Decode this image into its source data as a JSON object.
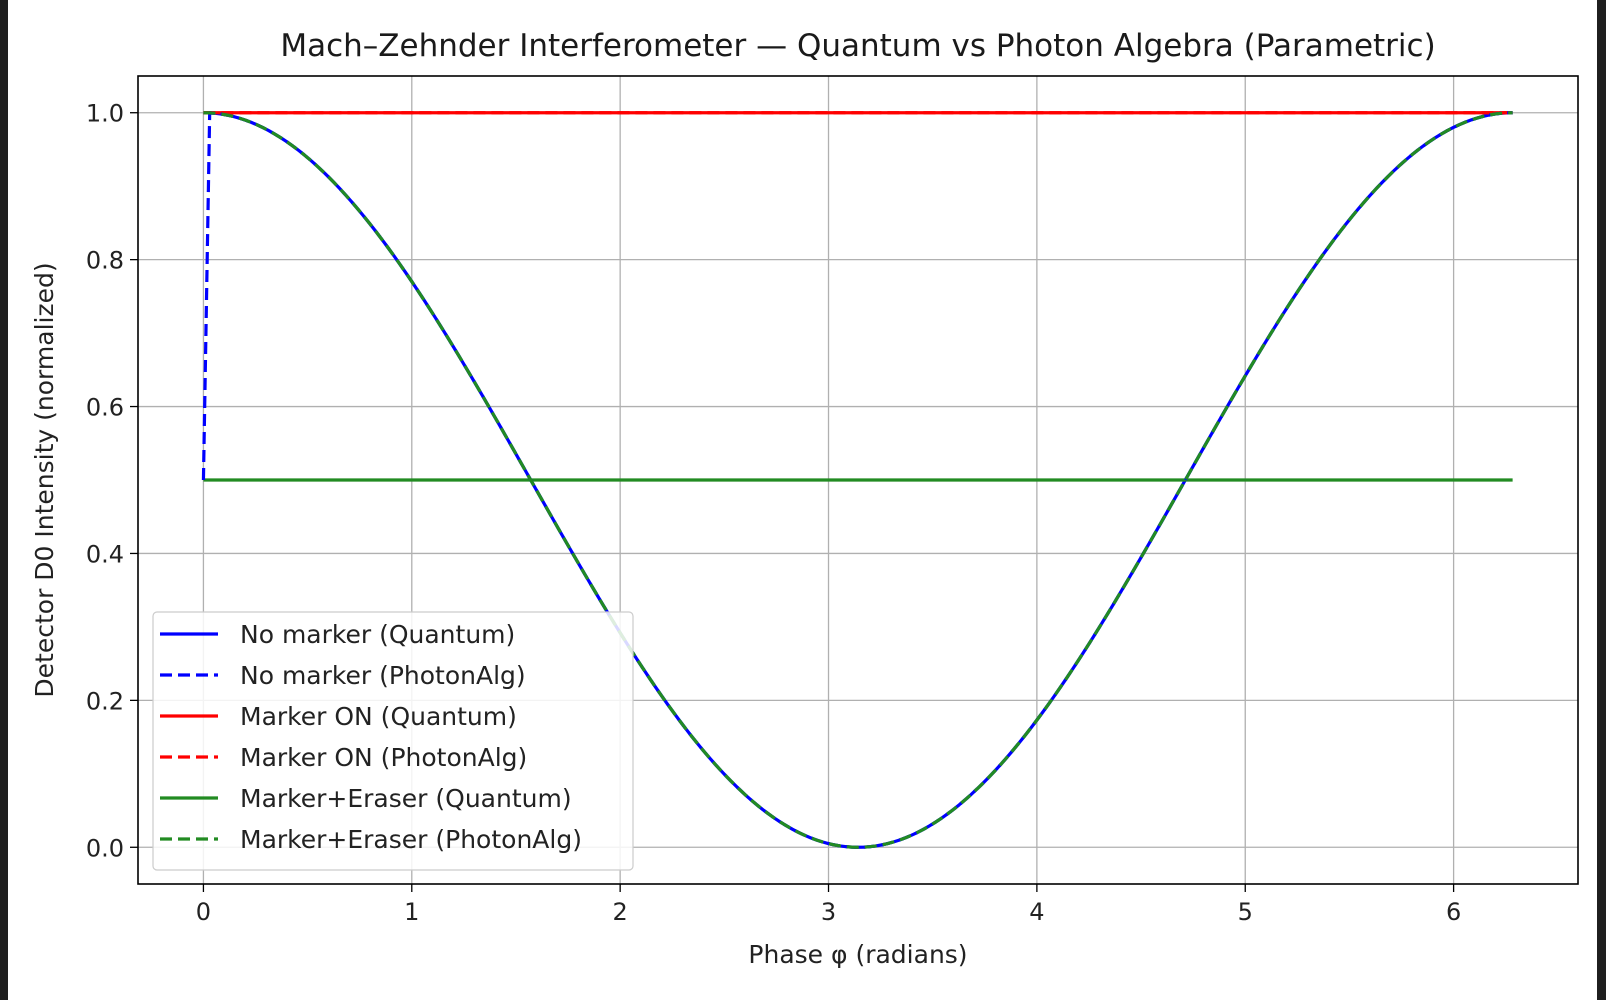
{
  "chart_data": {
    "type": "line",
    "title": "Mach–Zehnder Interferometer — Quantum vs Photon Algebra (Parametric)",
    "xlabel": "Phase φ (radians)",
    "ylabel": "Detector D0 Intensity (normalized)",
    "xlim": [
      -0.314,
      6.597
    ],
    "ylim": [
      -0.05,
      1.05
    ],
    "x_ticks": [
      0,
      1,
      2,
      3,
      4,
      5,
      6
    ],
    "y_ticks": [
      0.0,
      0.2,
      0.4,
      0.6,
      0.8,
      1.0
    ],
    "x_tick_labels": [
      "0",
      "1",
      "2",
      "3",
      "4",
      "5",
      "6"
    ],
    "y_tick_labels": [
      "0.0",
      "0.2",
      "0.4",
      "0.6",
      "0.8",
      "1.0"
    ],
    "grid": true,
    "legend_position": "lower-left",
    "x": [
      0.0,
      0.03,
      0.3307,
      0.6614,
      0.9921,
      1.3228,
      1.6535,
      1.9842,
      2.3149,
      2.6456,
      2.9763,
      3.1416,
      3.307,
      3.6377,
      3.9684,
      4.2991,
      4.6298,
      4.9605,
      5.2912,
      5.6219,
      5.9526,
      6.2832
    ],
    "series": [
      {
        "name": "No marker (Quantum)",
        "color": "#0000ff",
        "dash": "solid",
        "values": [
          1.0,
          0.9998,
          0.9729,
          0.8947,
          0.7728,
          0.6229,
          0.4586,
          0.2995,
          0.1654,
          0.0686,
          0.0069,
          0.0,
          0.0069,
          0.0686,
          0.1654,
          0.2995,
          0.4586,
          0.6229,
          0.7728,
          0.8947,
          0.9729,
          1.0
        ]
      },
      {
        "name": "No marker (PhotonAlg)",
        "color": "#0000ff",
        "dash": "dashed",
        "values": [
          0.5,
          1.0,
          0.9729,
          0.8947,
          0.7728,
          0.6229,
          0.4586,
          0.2995,
          0.1654,
          0.0686,
          0.0069,
          0.0,
          0.0069,
          0.0686,
          0.1654,
          0.2995,
          0.4586,
          0.6229,
          0.7728,
          0.8947,
          0.9729,
          1.0
        ]
      },
      {
        "name": "Marker ON (Quantum)",
        "color": "#ff0000",
        "dash": "solid",
        "values": [
          1.0,
          1.0,
          1.0,
          1.0,
          1.0,
          1.0,
          1.0,
          1.0,
          1.0,
          1.0,
          1.0,
          1.0,
          1.0,
          1.0,
          1.0,
          1.0,
          1.0,
          1.0,
          1.0,
          1.0,
          1.0,
          1.0
        ]
      },
      {
        "name": "Marker ON (PhotonAlg)",
        "color": "#ff0000",
        "dash": "dashed",
        "values": [
          1.0,
          1.0,
          1.0,
          1.0,
          1.0,
          1.0,
          1.0,
          1.0,
          1.0,
          1.0,
          1.0,
          1.0,
          1.0,
          1.0,
          1.0,
          1.0,
          1.0,
          1.0,
          1.0,
          1.0,
          1.0,
          1.0
        ]
      },
      {
        "name": "Marker+Eraser (Quantum)",
        "color": "#228b22",
        "dash": "solid",
        "values": [
          0.5,
          0.5,
          0.5,
          0.5,
          0.5,
          0.5,
          0.5,
          0.5,
          0.5,
          0.5,
          0.5,
          0.5,
          0.5,
          0.5,
          0.5,
          0.5,
          0.5,
          0.5,
          0.5,
          0.5,
          0.5,
          0.5
        ]
      },
      {
        "name": "Marker+Eraser (PhotonAlg)",
        "color": "#228b22",
        "dash": "dashed",
        "values": [
          1.0,
          0.9998,
          0.9729,
          0.8947,
          0.7728,
          0.6229,
          0.4586,
          0.2995,
          0.1654,
          0.0686,
          0.0069,
          0.0,
          0.0069,
          0.0686,
          0.1654,
          0.2995,
          0.4586,
          0.6229,
          0.7728,
          0.8947,
          0.9729,
          1.0
        ]
      }
    ]
  }
}
